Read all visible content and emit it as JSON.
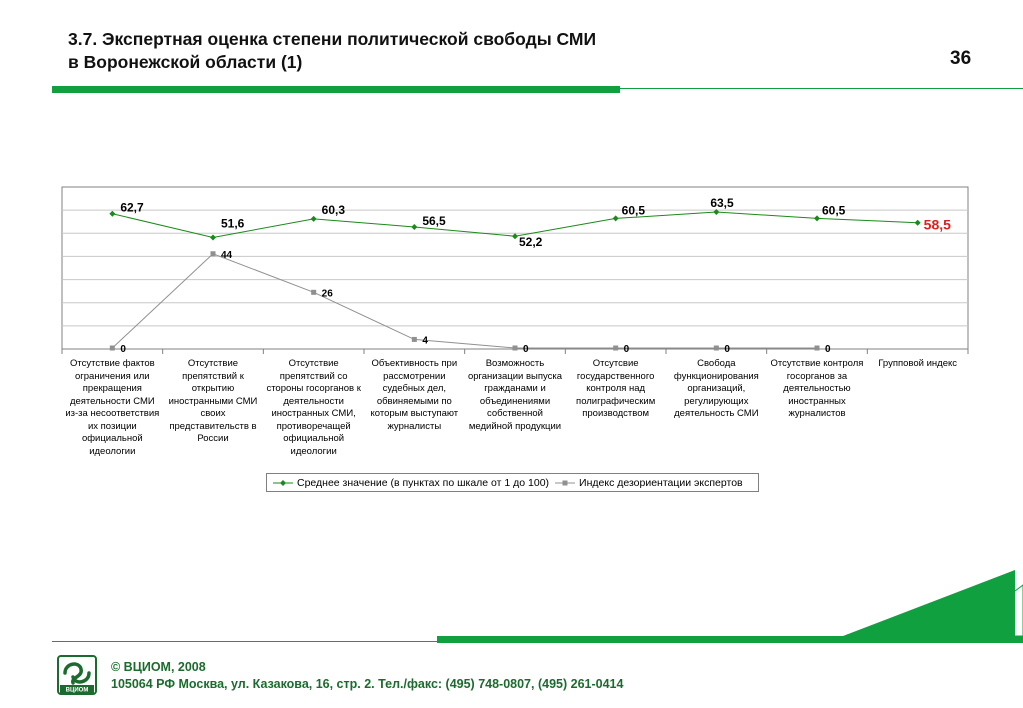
{
  "slide": {
    "title_line1": "3.7. Экспертная оценка степени политической свободы СМИ",
    "title_line2": "в Воронежской области (1)",
    "page_number": "36",
    "accent_color": "#10a040"
  },
  "footer": {
    "line1": "© ВЦИОМ, 2008",
    "line2": "105064 РФ Москва, ул. Казакова, 16, стр. 2.  Тел./факс: (495) 748-0807, (495) 261-0414",
    "logo_text": "ВЦИОМ"
  },
  "chart_data": {
    "type": "line",
    "categories": [
      "Отсутствие фактов ограничения или прекращения деятельности СМИ из-за несоответствия их позиции официальной идеологии",
      "Отсутствие препятствий к открытию иностранными СМИ своих представительств в России",
      "Отсутствие препятствий со стороны госорганов к деятельности иностранных СМИ, противоречащей официальной идеологии",
      "Объективность при рассмотрении судебных дел, обвиняемыми по которым выступают журналисты",
      "Возможность организации выпуска гражданами и объединениями собственной медийной продукции",
      "Отсутсвие государственного контроля над полиграфическим производством",
      "Свобода функционирования организаций, регулирующих деятельность СМИ",
      "Отсутствие контроля госорганов за деятельностью иностранных журналистов",
      "Групповой индекс"
    ],
    "series": [
      {
        "name": "Среднее значение (в пунктах по шкале от 1 до 100)",
        "values": [
          62.7,
          51.6,
          60.3,
          56.5,
          52.2,
          60.5,
          63.5,
          60.5,
          58.5
        ],
        "labels": [
          "62,7",
          "51,6",
          "60,3",
          "56,5",
          "52,2",
          "60,5",
          "63,5",
          "60,5",
          "58,5"
        ],
        "color": "#1a8a1a",
        "highlight_color": "#e0201c"
      },
      {
        "name": "Индекс дезориентации экспертов",
        "values": [
          0,
          44,
          26,
          4,
          0,
          0,
          0,
          0,
          null
        ],
        "labels": [
          "0",
          "44",
          "26",
          "4",
          "0",
          "0",
          "0",
          "0",
          ""
        ],
        "color": "#909090"
      }
    ],
    "ylim": [
      0,
      70
    ],
    "grid": true
  }
}
